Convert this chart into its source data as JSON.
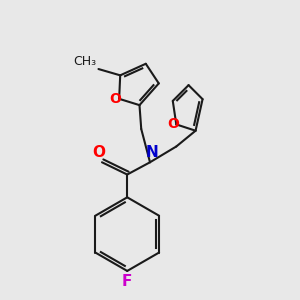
{
  "bg_color": "#e8e8e8",
  "bond_color": "#1a1a1a",
  "bond_width": 1.5,
  "atom_colors": {
    "O": "#ff0000",
    "N": "#0000cc",
    "F": "#cc00cc",
    "C": "#1a1a1a"
  },
  "font_size_large": 11,
  "font_size_small": 9,
  "font_size_methyl": 9
}
